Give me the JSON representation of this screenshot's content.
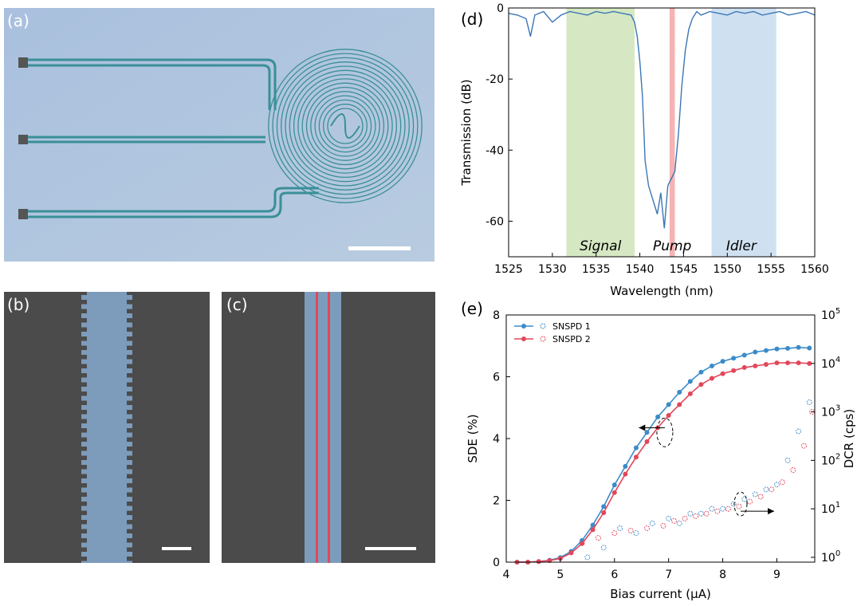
{
  "panels": {
    "a": {
      "label": "(a)"
    },
    "b": {
      "label": "(b)"
    },
    "c": {
      "label": "(c)"
    },
    "d": {
      "label": "(d)"
    },
    "e": {
      "label": "(e)"
    }
  },
  "colors": {
    "microscope_bg": "#a9c3df",
    "waveguide": "#6ec6cc",
    "sem_bg": "#4a4a4a",
    "sem_waveguide": "#7d9cbc",
    "sem_red_line": "#e2475a",
    "signal_band": "#cfe4b8",
    "pump_band": "#f4a6a6",
    "idler_band": "#c7dcef",
    "trace": "#3b77b5",
    "snspd1": "#3b8bc9",
    "snspd2": "#e2475a"
  },
  "chart_data": [
    {
      "panel": "d",
      "type": "line",
      "xlabel": "Wavelength (nm)",
      "ylabel": "Transmission (dB)",
      "xlim": [
        1525,
        1560
      ],
      "ylim": [
        -70,
        0
      ],
      "xticks": [
        1525,
        1530,
        1535,
        1540,
        1545,
        1550,
        1555,
        1560
      ],
      "yticks": [
        0,
        -20,
        -40,
        -60
      ],
      "bands": [
        {
          "name": "Signal",
          "from": 1531.6,
          "to": 1539.4,
          "color": "#cfe4b8",
          "label_x": 1535.5
        },
        {
          "name": "Pump",
          "from": 1543.4,
          "to": 1544.0,
          "color": "#f4a6a6",
          "label_x": 1543.7
        },
        {
          "name": "Idler",
          "from": 1548.2,
          "to": 1555.6,
          "color": "#c7dcef",
          "label_x": 1551.6
        }
      ],
      "series": [
        {
          "x": [
            1525,
            1526,
            1527,
            1527.5,
            1528,
            1529,
            1530,
            1531,
            1532,
            1533,
            1534,
            1535,
            1536,
            1537,
            1538,
            1539,
            1539.4,
            1539.7,
            1540,
            1540.3,
            1540.6,
            1541,
            1541.5,
            1542,
            1542.4,
            1542.8,
            1543.2,
            1543.6,
            1544,
            1544.4,
            1544.8,
            1545.2,
            1545.6,
            1546,
            1546.5,
            1547,
            1548,
            1549,
            1550,
            1551,
            1552,
            1553,
            1554,
            1555,
            1556,
            1557,
            1558,
            1559,
            1560
          ],
          "y": [
            -1.5,
            -2,
            -3,
            -8,
            -2,
            -1,
            -4,
            -2,
            -1,
            -1.5,
            -2,
            -1,
            -1.5,
            -1,
            -1.5,
            -2,
            -4,
            -8,
            -15,
            -25,
            -43,
            -50,
            -54,
            -58,
            -52,
            -62,
            -50,
            -48,
            -46,
            -36,
            -22,
            -12,
            -6,
            -3,
            -1,
            -2,
            -1,
            -1.5,
            -2,
            -1,
            -1.5,
            -1,
            -2,
            -1.5,
            -1,
            -2,
            -1.5,
            -1,
            -2
          ]
        }
      ]
    },
    {
      "panel": "e",
      "type": "scatter",
      "xlabel": "Bias current (μA)",
      "ylabel": "SDE (%)",
      "y2label": "DCR (cps)",
      "xlim": [
        4,
        9.7
      ],
      "ylim": [
        0,
        8
      ],
      "y2lim_log10": [
        -0.1,
        5
      ],
      "xticks": [
        4,
        5,
        6,
        7,
        8,
        9
      ],
      "yticks": [
        0,
        2,
        4,
        6,
        8
      ],
      "y2ticks": [
        {
          "exp": 0,
          "text": "10",
          "sup": "0"
        },
        {
          "exp": 1,
          "text": "10",
          "sup": "1"
        },
        {
          "exp": 2,
          "text": "10",
          "sup": "2"
        },
        {
          "exp": 3,
          "text": "10",
          "sup": "3"
        },
        {
          "exp": 4,
          "text": "10",
          "sup": "4"
        },
        {
          "exp": 5,
          "text": "10",
          "sup": "5"
        }
      ],
      "legend": [
        {
          "label": "SNSPD 1"
        },
        {
          "label": "SNSPD 2"
        }
      ],
      "sde_series": [
        {
          "name": "SNSPD 1",
          "x": [
            4.2,
            4.4,
            4.6,
            4.8,
            5.0,
            5.2,
            5.4,
            5.6,
            5.8,
            6.0,
            6.2,
            6.4,
            6.6,
            6.8,
            7.0,
            7.2,
            7.4,
            7.6,
            7.8,
            8.0,
            8.2,
            8.4,
            8.6,
            8.8,
            9.0,
            9.2,
            9.4,
            9.6
          ],
          "y": [
            0,
            0,
            0.02,
            0.06,
            0.15,
            0.35,
            0.7,
            1.2,
            1.8,
            2.5,
            3.1,
            3.7,
            4.2,
            4.7,
            5.1,
            5.5,
            5.85,
            6.15,
            6.35,
            6.5,
            6.6,
            6.7,
            6.8,
            6.85,
            6.9,
            6.92,
            6.95,
            6.93
          ]
        },
        {
          "name": "SNSPD 2",
          "x": [
            4.2,
            4.4,
            4.6,
            4.8,
            5.0,
            5.2,
            5.4,
            5.6,
            5.8,
            6.0,
            6.2,
            6.4,
            6.6,
            6.8,
            7.0,
            7.2,
            7.4,
            7.6,
            7.8,
            8.0,
            8.2,
            8.4,
            8.6,
            8.8,
            9.0,
            9.2,
            9.4,
            9.6
          ],
          "y": [
            0,
            0,
            0.02,
            0.05,
            0.12,
            0.3,
            0.6,
            1.05,
            1.6,
            2.25,
            2.85,
            3.4,
            3.9,
            4.35,
            4.75,
            5.1,
            5.45,
            5.75,
            5.95,
            6.1,
            6.2,
            6.3,
            6.35,
            6.4,
            6.45,
            6.45,
            6.45,
            6.43
          ]
        }
      ],
      "dcr_series": [
        {
          "name": "SNSPD 1",
          "x": [
            5.5,
            5.8,
            6.1,
            6.4,
            6.7,
            7.0,
            7.2,
            7.4,
            7.6,
            7.8,
            8.0,
            8.2,
            8.4,
            8.6,
            8.8,
            9.0,
            9.2,
            9.4,
            9.6
          ],
          "log10": [
            0,
            0.2,
            0.6,
            0.5,
            0.7,
            0.8,
            0.7,
            0.9,
            0.9,
            1.0,
            1.0,
            1.1,
            1.2,
            1.3,
            1.4,
            1.5,
            2.0,
            2.6,
            3.2
          ]
        },
        {
          "name": "SNSPD 2",
          "x": [
            5.4,
            5.7,
            6.0,
            6.3,
            6.6,
            6.9,
            7.1,
            7.3,
            7.5,
            7.7,
            7.9,
            8.1,
            8.3,
            8.5,
            8.7,
            8.9,
            9.1,
            9.3,
            9.5,
            9.65
          ],
          "log10": [
            0.3,
            0.4,
            0.5,
            0.55,
            0.6,
            0.65,
            0.75,
            0.8,
            0.85,
            0.9,
            0.95,
            1.0,
            1.05,
            1.15,
            1.25,
            1.4,
            1.55,
            1.8,
            2.3,
            3.0
          ]
        }
      ]
    }
  ]
}
